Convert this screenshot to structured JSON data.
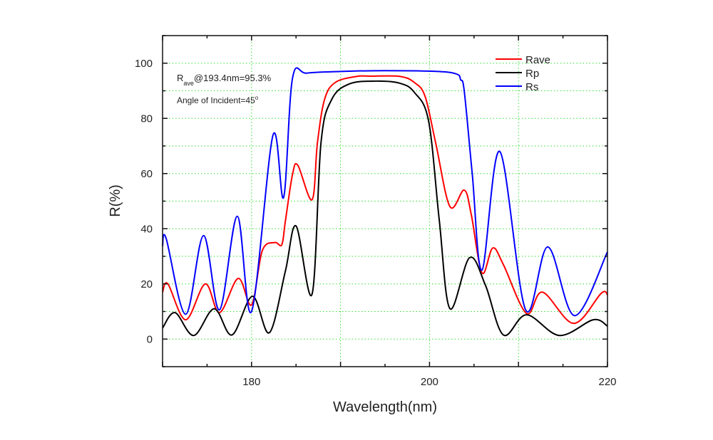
{
  "chart_data": {
    "type": "line",
    "title": "",
    "xlabel": "Wavelength(nm)",
    "ylabel": "R(%)",
    "xlim": [
      170,
      220
    ],
    "ylim": [
      -10,
      110
    ],
    "xticks": [
      180,
      200,
      220
    ],
    "yticks": [
      0,
      20,
      40,
      60,
      80,
      100
    ],
    "grid": true,
    "grid_color": "#33dd33",
    "legend_position": "top-right",
    "annotations": {
      "line1_main": "R",
      "line1_sub": "ave",
      "line1_rest": "@193.4nm=95.3%",
      "line2_main": "Angle of Incident=45",
      "line2_sup": "o"
    },
    "series": [
      {
        "name": "Rave",
        "color": "#ff0000",
        "x": [
          170,
          170.6,
          172.6,
          174.8,
          176.4,
          178.5,
          180,
          181.2,
          182.6,
          183.4,
          183.8,
          184.6,
          185.2,
          186.8,
          187.4,
          188.2,
          189.4,
          191.8,
          193.4,
          196.7,
          198.3,
          199.5,
          200.7,
          202.3,
          203.9,
          204.7,
          205.9,
          207.1,
          208.3,
          210.9,
          212.7,
          216.2,
          219.3,
          220
        ],
        "y": [
          17,
          20,
          7,
          20,
          9.6,
          22,
          12.4,
          32,
          35,
          34.2,
          42.7,
          59.6,
          63,
          50.5,
          71,
          86.8,
          93,
          95.2,
          95.3,
          95.2,
          93,
          88,
          71,
          48,
          54,
          45,
          24,
          33,
          27,
          9.3,
          17,
          5.7,
          16.6,
          16
        ]
      },
      {
        "name": "Rp",
        "color": "#000000",
        "x": [
          170,
          171.4,
          173.5,
          175.8,
          177.8,
          180.1,
          182,
          183.8,
          185,
          186.8,
          187.8,
          189,
          191,
          194,
          196.7,
          198.3,
          199.9,
          201.1,
          202.3,
          204.5,
          206.3,
          208.3,
          210.9,
          214.6,
          218.4,
          220
        ],
        "y": [
          4,
          9.6,
          1.3,
          11,
          1.5,
          15.5,
          2.3,
          24.6,
          41,
          16.3,
          71,
          86.8,
          92.5,
          93.5,
          92.7,
          89.4,
          79,
          43,
          11,
          29.5,
          19.4,
          1.5,
          8.8,
          1.3,
          7,
          4.7
        ]
      },
      {
        "name": "Rs",
        "color": "#0000ff",
        "x": [
          170,
          170.4,
          172.6,
          174.6,
          176.4,
          178.4,
          180,
          182.4,
          183.6,
          184.6,
          186.2,
          190,
          195,
          201,
          203.1,
          203.5,
          203.9,
          204.8,
          205.9,
          207.9,
          210.8,
          213.3,
          216.3,
          220
        ],
        "y": [
          33.7,
          36.5,
          9,
          37.5,
          10.6,
          44.5,
          10,
          73.8,
          51.3,
          94.5,
          96.4,
          97,
          97.3,
          97,
          96,
          94,
          90,
          60,
          25,
          68,
          10.6,
          33.4,
          8.5,
          31.6
        ]
      }
    ]
  }
}
